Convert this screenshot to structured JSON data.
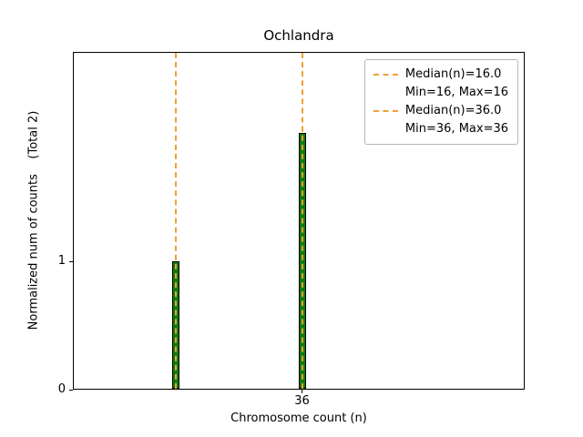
{
  "title": "Ochlandra",
  "xlabel": "Chromosome count (n)",
  "ylabel": "Normalized num of counts    (Total 2)",
  "chart_data": {
    "type": "bar",
    "x": [
      16,
      36
    ],
    "values": [
      1,
      2
    ],
    "bar_color": "#0a7d0a",
    "bar_edge_color": "#000000",
    "median_vlines": [
      16,
      36
    ],
    "vline_color": "#eda233",
    "xlim": [
      0,
      71
    ],
    "ylim": [
      0,
      2.63
    ],
    "grid": false,
    "legend_position": "upper right",
    "xticks": [
      {
        "value": 36,
        "label": "36"
      }
    ],
    "yticks": [
      {
        "value": 0,
        "label": "0"
      },
      {
        "value": 1,
        "label": "1"
      }
    ],
    "legend": [
      {
        "line1": "Median(n)=16.0",
        "line2": "Min=16, Max=16"
      },
      {
        "line1": "Median(n)=36.0",
        "line2": "Min=36, Max=36"
      }
    ]
  }
}
